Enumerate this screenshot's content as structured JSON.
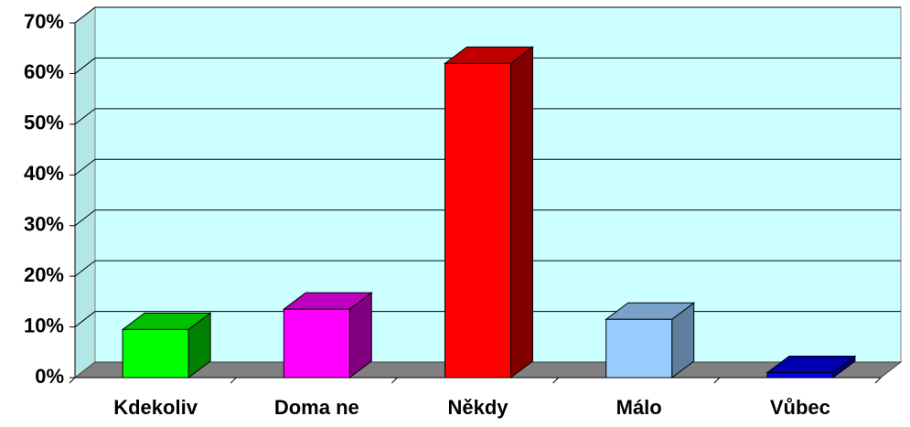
{
  "chart_data": {
    "type": "bar3d",
    "categories": [
      "Kdekoliv",
      "Doma ne",
      "Někdy",
      "Málo",
      "Vůbec"
    ],
    "values": [
      9.5,
      13.5,
      62,
      11.5,
      1
    ],
    "colors": [
      "#00ff00",
      "#ff00ff",
      "#ff0000",
      "#99ccff",
      "#0000ee"
    ],
    "side_colors": [
      "#008000",
      "#800080",
      "#800000",
      "#5f7f9f",
      "#000080"
    ],
    "top_colors": [
      "#00c000",
      "#c000c0",
      "#c00000",
      "#7aa3cc",
      "#0000b0"
    ],
    "ylim": [
      0,
      70
    ],
    "yticks": [
      {
        "value": 0,
        "label": "0%"
      },
      {
        "value": 10,
        "label": "10%"
      },
      {
        "value": 20,
        "label": "20%"
      },
      {
        "value": 30,
        "label": "30%"
      },
      {
        "value": 40,
        "label": "40%"
      },
      {
        "value": 50,
        "label": "50%"
      },
      {
        "value": 60,
        "label": "60%"
      },
      {
        "value": 70,
        "label": "70%"
      }
    ],
    "grid": true
  }
}
